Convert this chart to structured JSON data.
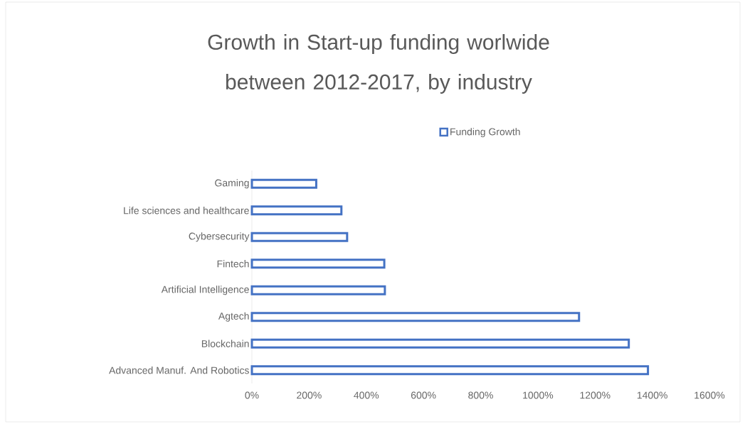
{
  "chart_data": {
    "type": "bar",
    "orientation": "horizontal",
    "title": "Growth in Start-up funding worlwide between 2012-2017, by industry",
    "categories": [
      "Gaming",
      "Life sciences and healthcare",
      "Cybersecurity",
      "Fintech",
      "Artificial Intelligence",
      "Agtech",
      "Blockchain",
      "Advanced Manuf. And Robotics"
    ],
    "series": [
      {
        "name": "Funding Growth",
        "color": "#4472c4",
        "values": [
          225,
          313,
          333,
          463,
          465,
          1144,
          1318,
          1385
        ]
      }
    ],
    "xlim": [
      0,
      1600
    ],
    "xticks": [
      {
        "value": 0,
        "label": "0%"
      },
      {
        "value": 200,
        "label": "200%"
      },
      {
        "value": 400,
        "label": "400%"
      },
      {
        "value": 600,
        "label": "600%"
      },
      {
        "value": 800,
        "label": "800%"
      },
      {
        "value": 1000,
        "label": "1000%"
      },
      {
        "value": 1200,
        "label": "1200%"
      },
      {
        "value": 1400,
        "label": "1400%"
      },
      {
        "value": 1600,
        "label": "1600%"
      }
    ],
    "legend": "top"
  }
}
